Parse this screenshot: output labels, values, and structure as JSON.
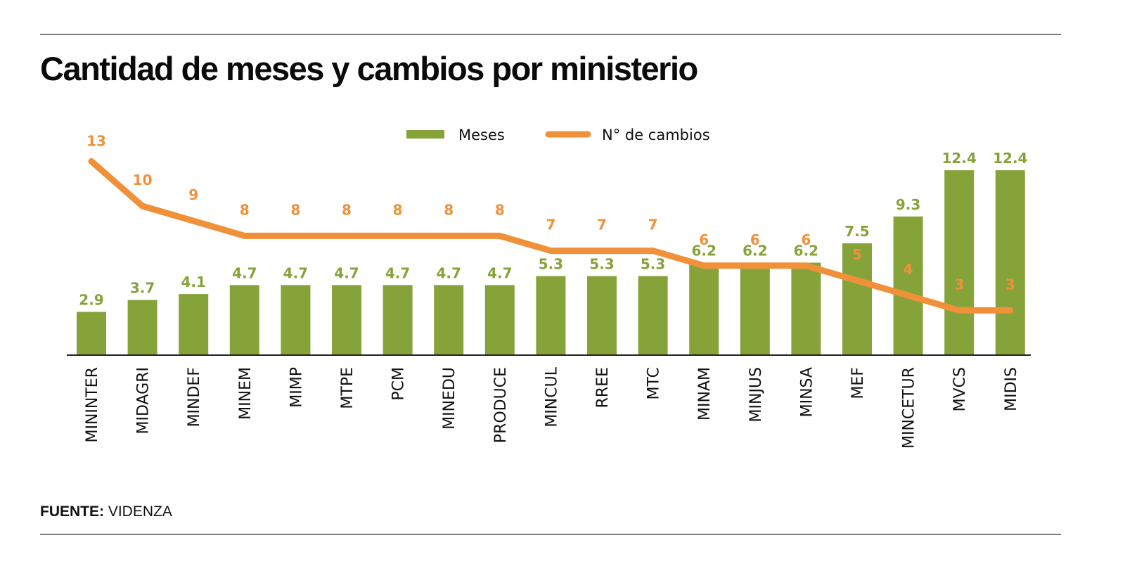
{
  "chart_data": {
    "type": "bar",
    "title": "Cantidad de meses y cambios por ministerio",
    "xlabel": "",
    "ylabel": "",
    "grid": false,
    "legend_position": "top-center",
    "categories": [
      "MININTER",
      "MIDAGRI",
      "MINDEF",
      "MINEM",
      "MIMP",
      "MTPE",
      "PCM",
      "MINEDU",
      "PRODUCE",
      "MINCUL",
      "RREE",
      "MTC",
      "MINAM",
      "MINJUS",
      "MINSA",
      "MEF",
      "MINCETUR",
      "MVCS",
      "MIDIS"
    ],
    "series": [
      {
        "name": "Meses",
        "type": "bar",
        "color": "#86a33a",
        "values": [
          2.9,
          3.7,
          4.1,
          4.7,
          4.7,
          4.7,
          4.7,
          4.7,
          4.7,
          5.3,
          5.3,
          5.3,
          6.2,
          6.2,
          6.2,
          7.5,
          9.3,
          12.4,
          12.4
        ],
        "labels": [
          "2.9",
          "3.7",
          "4.1",
          "4.7",
          "4.7",
          "4.7",
          "4.7",
          "4.7",
          "4.7",
          "5.3",
          "5.3",
          "5.3",
          "6.2",
          "6.2",
          "6.2",
          "7.5",
          "9.3",
          "12.4",
          "12.4"
        ]
      },
      {
        "name": "N° de cambios",
        "type": "line",
        "color": "#f0913a",
        "values": [
          13,
          10,
          9,
          8,
          8,
          8,
          8,
          8,
          8,
          7,
          7,
          7,
          6,
          6,
          6,
          5,
          4,
          3,
          3
        ],
        "labels": [
          "13",
          "10",
          "9",
          "8",
          "8",
          "8",
          "8",
          "8",
          "8",
          "7",
          "7",
          "7",
          "6",
          "6",
          "6",
          "5",
          "4",
          "3",
          "3"
        ]
      }
    ],
    "ylim": [
      0,
      13.5
    ]
  },
  "legend": {
    "meses": "Meses",
    "cambios": "N° de cambios"
  },
  "source": {
    "label": "FUENTE:",
    "value": " VIDENZA"
  }
}
